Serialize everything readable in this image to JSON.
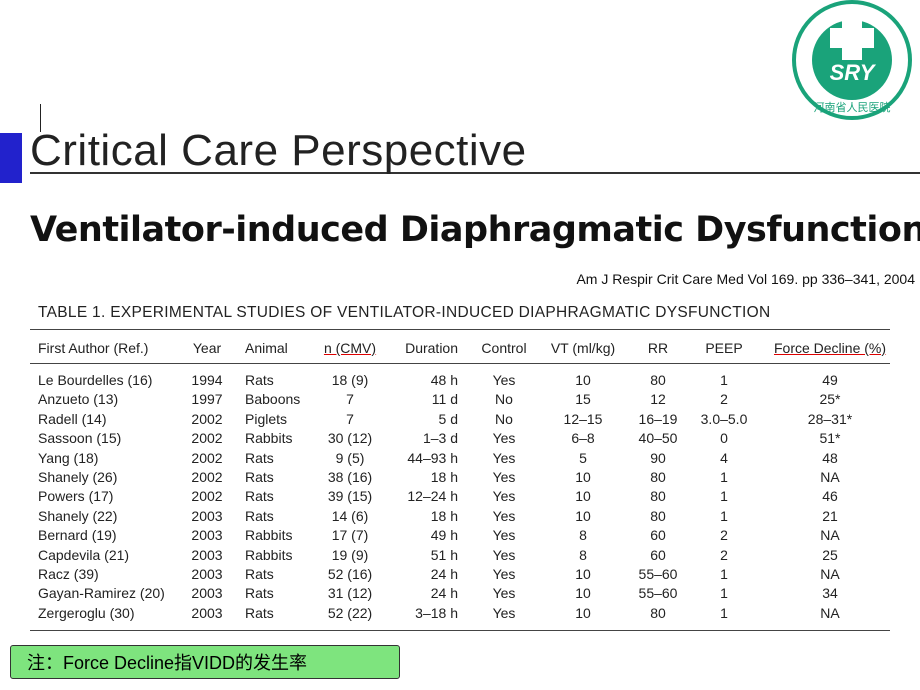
{
  "header": {
    "title": "Critical Care Perspective",
    "subtitle": "Ventilator-induced Diaphragmatic Dysfunction",
    "citation": "Am J Respir Crit Care Med   Vol 169. pp 336–341, 2004"
  },
  "logo": {
    "mark": "SRY",
    "hospital": "河南省人民医院"
  },
  "table": {
    "caption": "TABLE 1. EXPERIMENTAL STUDIES OF VENTILATOR-INDUCED DIAPHRAGMATIC DYSFUNCTION",
    "columns": [
      "First Author (Ref.)",
      "Year",
      "Animal",
      "n (CMV)",
      "Duration",
      "Control",
      "VT (ml/kg)",
      "RR",
      "PEEP",
      "Force Decline (%)"
    ],
    "rows": [
      [
        "Le Bourdelles (16)",
        "1994",
        "Rats",
        "18 (9)",
        "48 h",
        "Yes",
        "10",
        "80",
        "1",
        "49"
      ],
      [
        "Anzueto (13)",
        "1997",
        "Baboons",
        "7",
        "11 d",
        "No",
        "15",
        "12",
        "2",
        "25*"
      ],
      [
        "Radell (14)",
        "2002",
        "Piglets",
        "7",
        "5 d",
        "No",
        "12–15",
        "16–19",
        "3.0–5.0",
        "28–31*"
      ],
      [
        "Sassoon (15)",
        "2002",
        "Rabbits",
        "30 (12)",
        "1–3 d",
        "Yes",
        "6–8",
        "40–50",
        "0",
        "51*"
      ],
      [
        "Yang (18)",
        "2002",
        "Rats",
        "9 (5)",
        "44–93 h",
        "Yes",
        "5",
        "90",
        "4",
        "48"
      ],
      [
        "Shanely (26)",
        "2002",
        "Rats",
        "38 (16)",
        "18 h",
        "Yes",
        "10",
        "80",
        "1",
        "NA"
      ],
      [
        "Powers (17)",
        "2002",
        "Rats",
        "39 (15)",
        "12–24 h",
        "Yes",
        "10",
        "80",
        "1",
        "46"
      ],
      [
        "Shanely (22)",
        "2003",
        "Rats",
        "14 (6)",
        "18 h",
        "Yes",
        "10",
        "80",
        "1",
        "21"
      ],
      [
        "Bernard (19)",
        "2003",
        "Rabbits",
        "17 (7)",
        "49 h",
        "Yes",
        "8",
        "60",
        "2",
        "NA"
      ],
      [
        "Capdevila (21)",
        "2003",
        "Rabbits",
        "19 (9)",
        "51 h",
        "Yes",
        "8",
        "60",
        "2",
        "25"
      ],
      [
        "Racz (39)",
        "2003",
        "Rats",
        "52 (16)",
        "24 h",
        "Yes",
        "10",
        "55–60",
        "1",
        "NA"
      ],
      [
        "Gayan-Ramirez (20)",
        "2003",
        "Rats",
        "31 (12)",
        "24 h",
        "Yes",
        "10",
        "55–60",
        "1",
        "34"
      ],
      [
        "Zergeroglu (30)",
        "2003",
        "Rats",
        "52 (22)",
        "3–18 h",
        "Yes",
        "10",
        "80",
        "1",
        "NA"
      ]
    ]
  },
  "note": "注：Force Decline指VIDD的发生率"
}
